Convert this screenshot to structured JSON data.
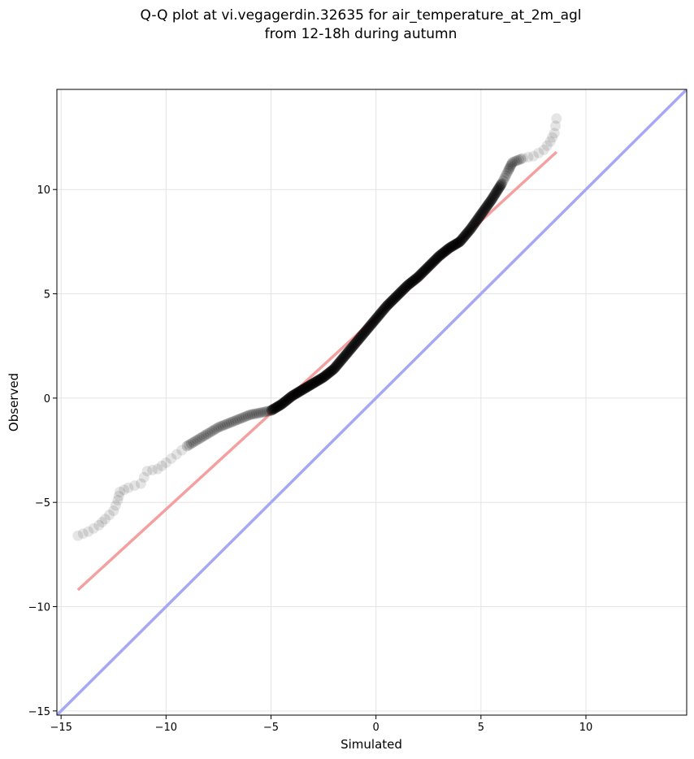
{
  "chart_data": {
    "type": "scatter",
    "title": "Q-Q plot at vi.vegagerdin.32635 for air_temperature_at_2m_agl",
    "subtitle": "from 12-18h during autumn",
    "xlabel": "Simulated",
    "ylabel": "Observed",
    "xlim": [
      -15.2,
      14.8
    ],
    "ylim": [
      -15.2,
      14.8
    ],
    "xticks": [
      -15,
      -10,
      -5,
      0,
      5,
      10
    ],
    "yticks": [
      -15,
      -10,
      -5,
      0,
      5,
      10
    ],
    "xtick_labels": [
      "−15",
      "−10",
      "−5",
      "0",
      "5",
      "10"
    ],
    "ytick_labels": [
      "−15",
      "−10",
      "−5",
      "0",
      "5",
      "10"
    ],
    "grid": true,
    "quantile_anchors": {
      "x": [
        -14.2,
        -13.7,
        -13.2,
        -12.9,
        -12.5,
        -12.3,
        -12.2,
        -11.8,
        -11.2,
        -10.9,
        -10.4,
        -10.0,
        -9.5,
        -9.0,
        -8.5,
        -8.0,
        -7.5,
        -7.0,
        -6.5,
        -6.0,
        -5.5,
        -5.0,
        -4.5,
        -4.0,
        -3.5,
        -3.0,
        -2.5,
        -2.0,
        -1.5,
        -1.0,
        -0.5,
        0.0,
        0.5,
        1.0,
        1.5,
        2.0,
        2.5,
        3.0,
        3.5,
        4.0,
        4.5,
        5.0,
        5.5,
        6.0,
        6.3,
        6.5,
        7.0,
        7.5,
        8.0,
        8.3,
        8.5,
        8.6
      ],
      "y": [
        -6.6,
        -6.4,
        -6.1,
        -5.8,
        -5.4,
        -4.9,
        -4.5,
        -4.3,
        -4.1,
        -3.5,
        -3.4,
        -3.1,
        -2.7,
        -2.3,
        -2.0,
        -1.7,
        -1.4,
        -1.2,
        -1.0,
        -0.8,
        -0.7,
        -0.6,
        -0.3,
        0.1,
        0.4,
        0.7,
        1.0,
        1.4,
        2.0,
        2.6,
        3.2,
        3.8,
        4.4,
        4.9,
        5.4,
        5.8,
        6.3,
        6.8,
        7.2,
        7.5,
        8.1,
        8.8,
        9.5,
        10.3,
        10.9,
        11.3,
        11.5,
        11.6,
        11.9,
        12.3,
        12.7,
        13.4
      ]
    },
    "fit_line": {
      "x": [
        -14.2,
        8.6
      ],
      "y": [
        -9.2,
        11.8
      ],
      "color": "#f5a0a0"
    },
    "identity_line": {
      "x": [
        -15.2,
        14.8
      ],
      "y": [
        -15.2,
        14.8
      ],
      "color": "#a6a8f4"
    },
    "marker_color": "#000000"
  }
}
